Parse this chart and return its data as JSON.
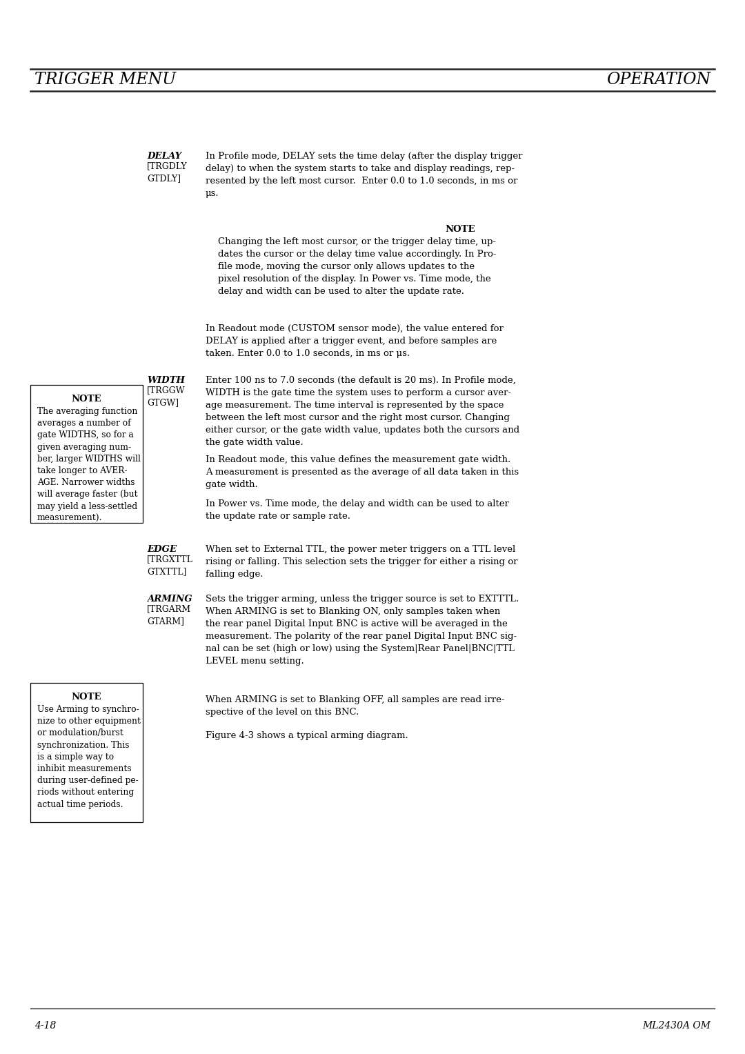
{
  "title_left": "TRIGGER MENU",
  "title_right": "OPERATION",
  "page_num_left": "4-18",
  "page_num_right": "ML2430A OM",
  "bg_color": "#ffffff",
  "delay_label": "DELAY",
  "delay_sublabel": "[TRGDLY\nGTDLY]",
  "delay_text": "In Profile mode, DELAY sets the time delay (after the display trigger\ndelay) to when the system starts to take and display readings, rep-\nresented by the left most cursor.  Enter 0.0 to 1.0 seconds, in ms or\nμs.",
  "note1_title": "NOTE",
  "note1_text": "Changing the left most cursor, or the trigger delay time, up-\ndates the cursor or the delay time value accordingly. In Pro-\nfile mode, moving the cursor only allows updates to the\npixel resolution of the display. In Power vs. Time mode, the\ndelay and width can be used to alter the update rate.",
  "delay_readout_text": "In Readout mode (CUSTOM sensor mode), the value entered for\nDELAY is applied after a trigger event, and before samples are\ntaken. Enter 0.0 to 1.0 seconds, in ms or μs.",
  "width_label": "WIDTH",
  "width_sublabel": "[TRGGW\nGTGW]",
  "width_text": "Enter 100 ns to 7.0 seconds (the default is 20 ms). In Profile mode,\nWIDTH is the gate time the system uses to perform a cursor aver-\nage measurement. The time interval is represented by the space\nbetween the left most cursor and the right most cursor. Changing\neither cursor, or the gate width value, updates both the cursors and\nthe gate width value.",
  "width_readout_text": "In Readout mode, this value defines the measurement gate width.\nA measurement is presented as the average of all data taken in this\ngate width.",
  "width_pvt_text": "In Power vs. Time mode, the delay and width can be used to alter\nthe update rate or sample rate.",
  "note_left1_title": "NOTE",
  "note_left1_text": "The averaging function\naverages a number of\ngate WIDTHS, so for a\ngiven averaging num-\nber, larger WIDTHS will\ntake longer to AVER-\nAGE. Narrower widths\nwill average faster (but\nmay yield a less-settled\nmeasurement).",
  "edge_label": "EDGE",
  "edge_sublabel": "[TRGXTTL\nGTXTTL]",
  "edge_text": "When set to External TTL, the power meter triggers on a TTL level\nrising or falling. This selection sets the trigger for either a rising or\nfalling edge.",
  "arming_label": "ARMING",
  "arming_sublabel": "[TRGARM\nGTARM]",
  "arming_text": "Sets the trigger arming, unless the trigger source is set to EXTTTL.\nWhen ARMING is set to Blanking ON, only samples taken when\nthe rear panel Digital Input BNC is active will be averaged in the\nmeasurement. The polarity of the rear panel Digital Input BNC sig-\nnal can be set (high or low) using the System|Rear Panel|BNC|TTL\nLEVEL menu setting.",
  "arming_off_text": "When ARMING is set to Blanking OFF, all samples are read irre-\nspective of the level on this BNC.",
  "arming_figure_text": "Figure 4-3 shows a typical arming diagram.",
  "note_left2_title": "NOTE",
  "note_left2_text": "Use Arming to synchro-\nnize to other equipment\nor modulation/burst\nsynchronization. This\nis a simple way to\ninhibit measurements\nduring user-defined pe-\nriods without entering\nactual time periods."
}
